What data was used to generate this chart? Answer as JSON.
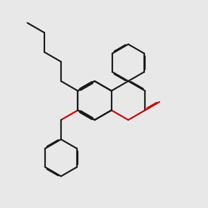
{
  "bg": "#e8e8e8",
  "bc": "#1a1a1a",
  "hc": "#cc0000",
  "lw": 1.6,
  "dbo": 0.012
}
